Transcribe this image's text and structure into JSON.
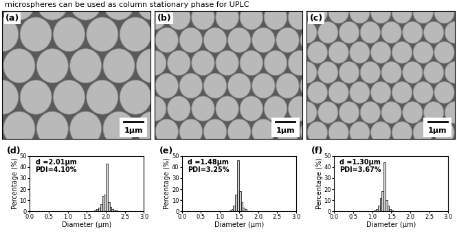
{
  "header": "microspheres can be used as column stationary phase for UPLC",
  "images": [
    {
      "label": "(a)",
      "scale_bar": "1µm"
    },
    {
      "label": "(b)",
      "scale_bar": "1µm"
    },
    {
      "label": "(c)",
      "scale_bar": "1µm"
    }
  ],
  "chart_data": [
    {
      "type": "histogram",
      "title": "(d)",
      "annotations": [
        "d =2.01µm",
        "PDI=4.10%"
      ],
      "xlabel": "Diameter (µm)",
      "ylabel": "Percentage (%)",
      "bins": [
        1.7,
        1.75,
        1.8,
        1.85,
        1.9,
        1.95,
        2.0,
        2.05,
        2.1,
        2.15,
        2.2,
        2.25,
        2.3
      ],
      "counts": [
        1,
        2,
        3,
        6,
        14,
        15,
        43,
        8,
        4,
        2,
        1,
        1
      ],
      "xlim": [
        0,
        3
      ],
      "ylim": [
        0,
        50
      ],
      "xticks": [
        {
          "value": 0,
          "label": "0.0"
        },
        0.5,
        {
          "value": 1,
          "label": "1.0"
        },
        1.5,
        {
          "value": 2,
          "label": "2.0"
        },
        2.5,
        {
          "value": 3,
          "label": "3.0"
        }
      ],
      "yticks": [
        0,
        10,
        20,
        30,
        40,
        50
      ]
    },
    {
      "type": "histogram",
      "title": "(e)",
      "annotations": [
        "d =1.48µm",
        "PDI=3.25%"
      ],
      "xlabel": "Diameter (µm)",
      "ylabel": "Percentage (%)",
      "bins": [
        1.25,
        1.3,
        1.35,
        1.4,
        1.45,
        1.5,
        1.55,
        1.6,
        1.65,
        1.7
      ],
      "counts": [
        1,
        2,
        5,
        15,
        46,
        18,
        8,
        3,
        2
      ],
      "xlim": [
        0,
        3
      ],
      "ylim": [
        0,
        50
      ],
      "xticks": [
        {
          "value": 0,
          "label": "0.0"
        },
        0.5,
        {
          "value": 1,
          "label": "1.0"
        },
        1.5,
        {
          "value": 2,
          "label": "2.0"
        },
        2.5,
        {
          "value": 3,
          "label": "3.0"
        }
      ],
      "yticks": [
        0,
        10,
        20,
        30,
        40,
        50
      ]
    },
    {
      "type": "histogram",
      "title": "(f)",
      "annotations": [
        "d =1.30µm",
        "PDI=3.67%"
      ],
      "xlabel": "Diameter (µm)",
      "ylabel": "Percentage (%)",
      "bins": [
        1.05,
        1.1,
        1.15,
        1.2,
        1.25,
        1.3,
        1.35,
        1.4,
        1.45,
        1.5,
        1.55
      ],
      "counts": [
        1,
        2,
        5,
        12,
        18,
        44,
        10,
        5,
        2,
        1
      ],
      "xlim": [
        0,
        3
      ],
      "ylim": [
        0,
        50
      ],
      "xticks": [
        {
          "value": 0,
          "label": "0.0"
        },
        0.5,
        {
          "value": 1,
          "label": "1.0"
        },
        1.5,
        {
          "value": 2,
          "label": "2.0"
        },
        2.5,
        {
          "value": 3,
          "label": "3.0"
        }
      ],
      "yticks": [
        0,
        10,
        20,
        30,
        40,
        50
      ]
    }
  ]
}
